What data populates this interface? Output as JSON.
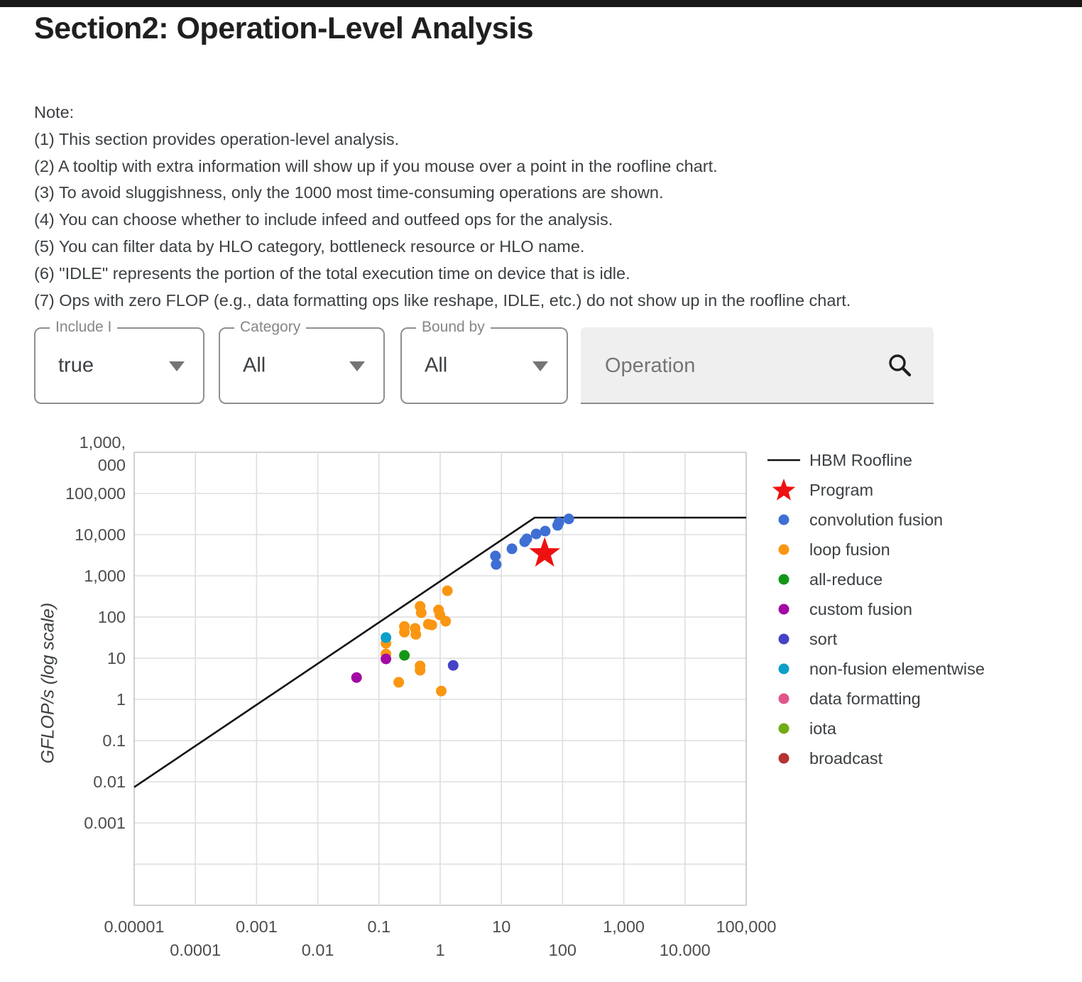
{
  "page": {
    "title": "Section2: Operation-Level Analysis"
  },
  "notes": {
    "heading": "Note:",
    "lines": [
      "(1) This section provides operation-level analysis.",
      "(2) A tooltip with extra information will show up if you mouse over a point in the roofline chart.",
      "(3) To avoid sluggishness, only the 1000 most time-consuming operations are shown.",
      "(4) You can choose whether to include infeed and outfeed ops for the analysis.",
      "(5) You can filter data by HLO category, bottleneck resource or HLO name.",
      "(6) \"IDLE\" represents the portion of the total execution time on device that is idle.",
      "(7) Ops with zero FLOP (e.g., data formatting ops like reshape, IDLE, etc.) do not show up in the roofline chart."
    ]
  },
  "filters": {
    "include": {
      "label": "Include I",
      "value": "true"
    },
    "category": {
      "label": "Category",
      "value": "All"
    },
    "bound_by": {
      "label": "Bound by",
      "value": "All"
    },
    "operation_search": {
      "placeholder": "Operation"
    }
  },
  "chart_data": {
    "type": "scatter",
    "title": "",
    "xlabel": "",
    "ylabel": "GFLOP/s (log scale)",
    "x_scale": "log",
    "y_scale": "log",
    "xlim": [
      1e-05,
      100000
    ],
    "ylim": [
      1e-05,
      1000000
    ],
    "grid": true,
    "legend_position": "right",
    "x_ticks": [
      {
        "label": "0.00001",
        "value": 1e-05,
        "row": 1
      },
      {
        "label": "0.0001",
        "value": 0.0001,
        "row": 2
      },
      {
        "label": "0.001",
        "value": 0.001,
        "row": 1
      },
      {
        "label": "0.01",
        "value": 0.01,
        "row": 2
      },
      {
        "label": "0.1",
        "value": 0.1,
        "row": 1
      },
      {
        "label": "1",
        "value": 1,
        "row": 2
      },
      {
        "label": "10",
        "value": 10,
        "row": 1
      },
      {
        "label": "100",
        "value": 100,
        "row": 2
      },
      {
        "label": "1,000",
        "value": 1000,
        "row": 1
      },
      {
        "label": "10.000",
        "value": 10000,
        "row": 2
      },
      {
        "label": "100,000",
        "value": 100000,
        "row": 1
      }
    ],
    "y_ticks": [
      {
        "label": "1,000,000",
        "value": 1000000,
        "wrap": [
          "1,000,",
          "000"
        ]
      },
      {
        "label": "100,000",
        "value": 100000
      },
      {
        "label": "10,000",
        "value": 10000
      },
      {
        "label": "1,000",
        "value": 1000
      },
      {
        "label": "100",
        "value": 100
      },
      {
        "label": "10",
        "value": 10
      },
      {
        "label": "1",
        "value": 1
      },
      {
        "label": "0.1",
        "value": 0.1
      },
      {
        "label": "0.01",
        "value": 0.01
      },
      {
        "label": "0.001",
        "value": 0.001
      }
    ],
    "roofline": {
      "name": "HBM Roofline",
      "color": "#111111",
      "points": [
        [
          1e-05,
          0.0074
        ],
        [
          35,
          25900
        ],
        [
          100000,
          25900
        ]
      ]
    },
    "program": {
      "name": "Program",
      "marker": "star",
      "color": "#ee1111",
      "x": 51,
      "y": 3500
    },
    "series": [
      {
        "name": "convolution fusion",
        "color": "#3e6fd4",
        "points": [
          [
            8,
            3040
          ],
          [
            8.2,
            1890
          ],
          [
            14.9,
            4530
          ],
          [
            24,
            6740
          ],
          [
            26,
            7900
          ],
          [
            37,
            10400
          ],
          [
            52,
            12200
          ],
          [
            83,
            16800
          ],
          [
            87,
            19700
          ],
          [
            126,
            24100
          ]
        ]
      },
      {
        "name": "loop fusion",
        "color": "#fa9612",
        "points": [
          [
            1.31,
            435
          ],
          [
            0.47,
            182
          ],
          [
            0.49,
            127
          ],
          [
            0.94,
            149
          ],
          [
            0.99,
            113
          ],
          [
            1.23,
            79
          ],
          [
            0.26,
            59
          ],
          [
            0.26,
            43
          ],
          [
            0.39,
            53
          ],
          [
            0.4,
            38
          ],
          [
            0.64,
            67
          ],
          [
            0.73,
            64
          ],
          [
            0.13,
            23
          ],
          [
            0.13,
            12.7
          ],
          [
            0.21,
            2.6
          ],
          [
            0.47,
            6.5
          ],
          [
            0.47,
            5.1
          ],
          [
            1.04,
            1.6
          ]
        ]
      },
      {
        "name": "all-reduce",
        "color": "#139618",
        "points": [
          [
            0.26,
            11.7
          ]
        ]
      },
      {
        "name": "custom fusion",
        "color": "#a309a3",
        "points": [
          [
            0.043,
            3.4
          ],
          [
            0.13,
            9.6
          ]
        ]
      },
      {
        "name": "sort",
        "color": "#4642c4",
        "points": [
          [
            1.63,
            6.7
          ]
        ]
      },
      {
        "name": "non-fusion elementwise",
        "color": "#0d9fc8",
        "points": [
          [
            0.13,
            31.7
          ]
        ]
      },
      {
        "name": "data formatting",
        "color": "#e2558a",
        "points": []
      },
      {
        "name": "iota",
        "color": "#71ab14",
        "points": []
      },
      {
        "name": "broadcast",
        "color": "#b53332",
        "points": []
      }
    ],
    "legend": [
      {
        "marker": "line",
        "color": "#111111",
        "label": "HBM Roofline"
      },
      {
        "marker": "star",
        "color": "#ee1111",
        "label": "Program"
      },
      {
        "marker": "dot",
        "color": "#3e6fd4",
        "label": "convolution fusion"
      },
      {
        "marker": "dot",
        "color": "#fa9612",
        "label": "loop fusion"
      },
      {
        "marker": "dot",
        "color": "#139618",
        "label": "all-reduce"
      },
      {
        "marker": "dot",
        "color": "#a309a3",
        "label": "custom fusion"
      },
      {
        "marker": "dot",
        "color": "#4642c4",
        "label": "sort"
      },
      {
        "marker": "dot",
        "color": "#0d9fc8",
        "label": "non-fusion elementwise"
      },
      {
        "marker": "dot",
        "color": "#e2558a",
        "label": "data formatting"
      },
      {
        "marker": "dot",
        "color": "#71ab14",
        "label": "iota"
      },
      {
        "marker": "dot",
        "color": "#b53332",
        "label": "broadcast"
      }
    ]
  }
}
